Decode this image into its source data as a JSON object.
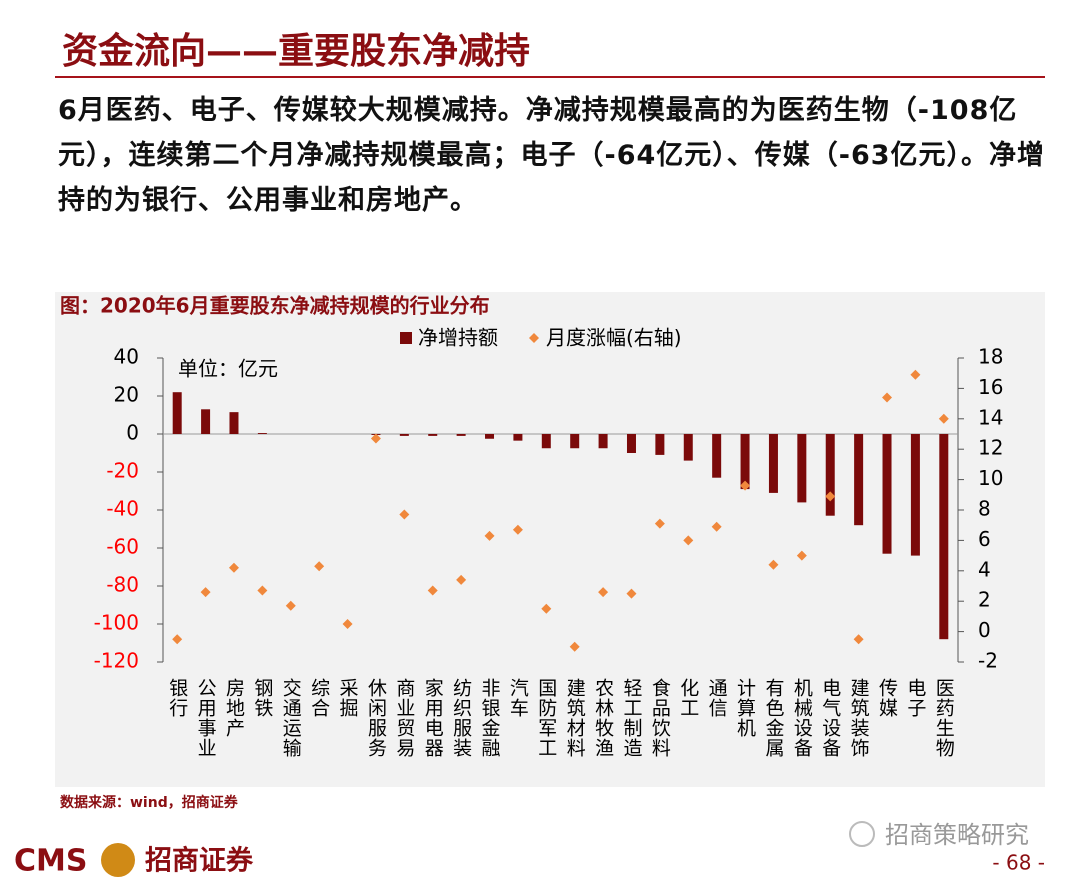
{
  "header": {
    "title": "资金流向——重要股东净减持"
  },
  "body": {
    "text": "6月医药、电子、传媒较大规模减持。净减持规模最高的为医药生物（-108亿元），连续第二个月净减持规模最高；电子（-64亿元）、传媒（-63亿元）。净增持的为银行、公用事业和房地产。"
  },
  "chart_data": {
    "type": "bar",
    "title": "图：2020年6月重要股东净减持规模的行业分布",
    "unit": "单位：亿元",
    "categories": [
      "银行",
      "公用事业",
      "房地产",
      "钢铁",
      "交通运输",
      "综合",
      "采掘",
      "休闲服务",
      "商业贸易",
      "家用电器",
      "纺织服装",
      "非银金融",
      "汽车",
      "国防军工",
      "建筑材料",
      "农林牧渔",
      "轻工制造",
      "食品饮料",
      "化工",
      "通信",
      "计算机",
      "有色金属",
      "机械设备",
      "电气设备",
      "建筑装饰",
      "传媒",
      "电子",
      "医药生物"
    ],
    "series": [
      {
        "name": "净增持额",
        "type": "bar",
        "color": "#7b0a0a",
        "values": [
          22,
          13,
          11.5,
          0.5,
          0,
          0,
          0,
          -0.5,
          -1,
          -1,
          -1,
          -2.5,
          -3.5,
          -7.5,
          -7.5,
          -7.5,
          -10,
          -11,
          -14,
          -23,
          -29,
          -31,
          -36,
          -43,
          -48,
          -63,
          -64,
          -108
        ]
      },
      {
        "name": "月度涨幅(右轴)",
        "type": "scatter",
        "axis": "y2",
        "color": "#f0883c",
        "values": [
          -0.5,
          2.6,
          4.2,
          2.7,
          1.7,
          4.3,
          0.5,
          12.7,
          7.7,
          2.7,
          3.4,
          6.3,
          6.7,
          1.5,
          -1,
          2.6,
          2.5,
          7.1,
          6.0,
          6.9,
          9.6,
          4.4,
          5.0,
          8.9,
          -0.5,
          15.4,
          16.9,
          14.0
        ]
      }
    ],
    "ylim": [
      -120,
      40
    ],
    "yticks": [
      -120,
      -100,
      -80,
      -60,
      -40,
      -20,
      0,
      20,
      40
    ],
    "negative_tick_color": "#ff0000",
    "y2lim": [
      -2,
      18
    ],
    "y2ticks": [
      -2,
      0,
      2,
      4,
      6,
      8,
      10,
      12,
      14,
      16,
      18
    ],
    "legend": "top"
  },
  "footer": {
    "source": "数据来源：wind，招商证券",
    "wechat": "招商策略研究",
    "brand_en": "CMS",
    "brand_cn": "招商证券",
    "page": "- 68 -"
  }
}
